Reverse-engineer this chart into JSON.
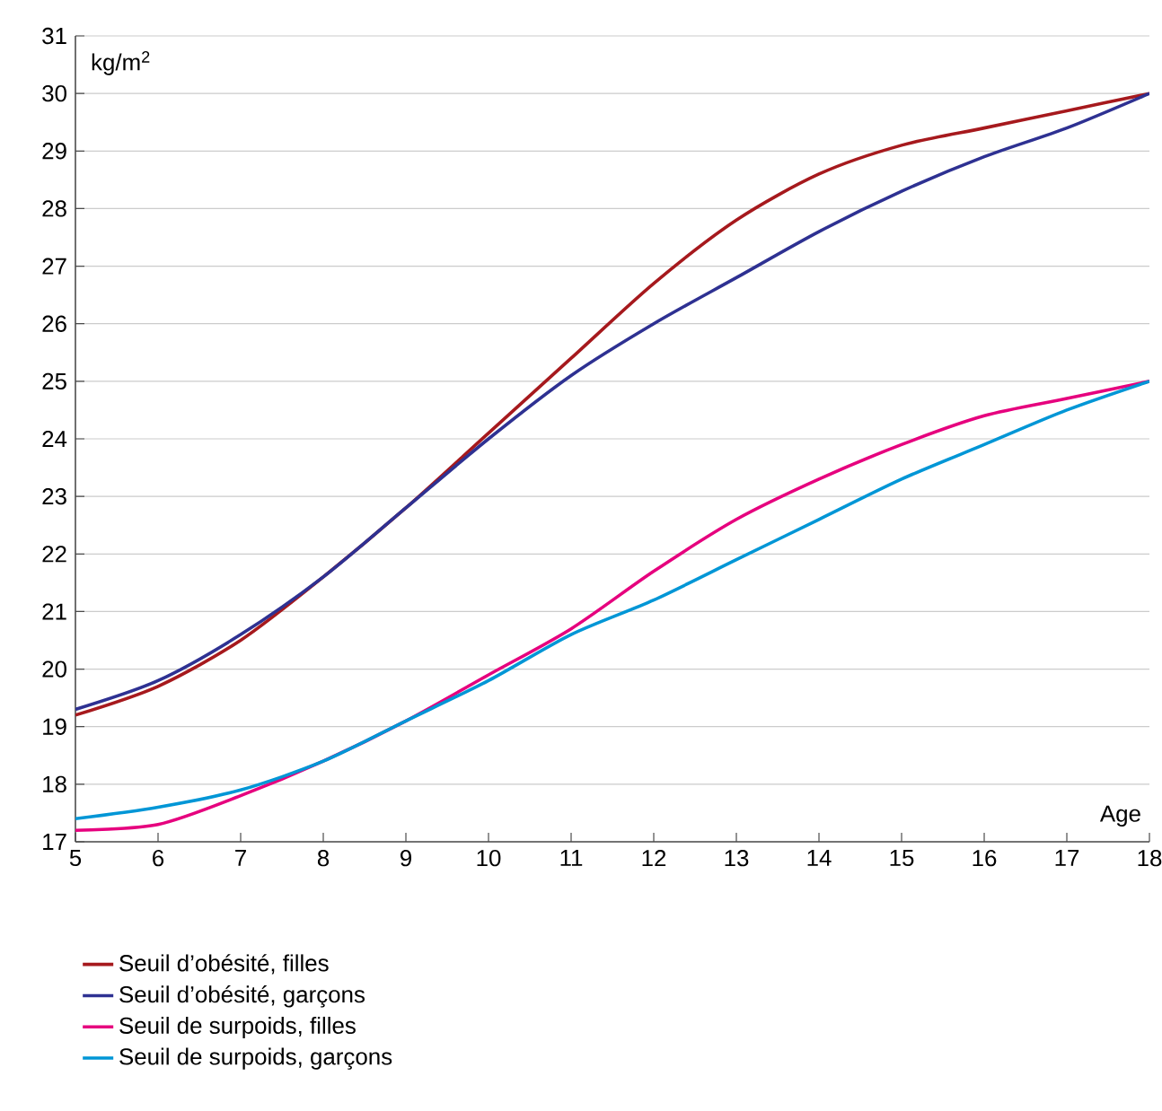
{
  "chart_data": {
    "type": "line",
    "xlabel": "Age",
    "ylabel": "kg/m$^{2}$",
    "x": [
      5,
      6,
      7,
      8,
      9,
      10,
      11,
      12,
      13,
      14,
      15,
      16,
      17,
      18
    ],
    "series": [
      {
        "name": "Seuil d’obésité, filles",
        "color": "#a6191d",
        "values": [
          19.2,
          19.7,
          20.5,
          21.6,
          22.8,
          24.1,
          25.4,
          26.7,
          27.8,
          28.6,
          29.1,
          29.4,
          29.7,
          30.0
        ]
      },
      {
        "name": "Seuil d’obésité, garçons",
        "color": "#2e3192",
        "values": [
          19.3,
          19.8,
          20.6,
          21.6,
          22.8,
          24.0,
          25.1,
          26.0,
          26.8,
          27.6,
          28.3,
          28.9,
          29.4,
          30.0
        ]
      },
      {
        "name": "Seuil de surpoids, filles",
        "color": "#e6007e",
        "values": [
          17.2,
          17.3,
          17.8,
          18.4,
          19.1,
          19.9,
          20.7,
          21.7,
          22.6,
          23.3,
          23.9,
          24.4,
          24.7,
          25.0
        ]
      },
      {
        "name": "Seuil de surpoids, garçons",
        "color": "#0096d6",
        "values": [
          17.4,
          17.6,
          17.9,
          18.4,
          19.1,
          19.8,
          20.6,
          21.2,
          21.9,
          22.6,
          23.3,
          23.9,
          24.5,
          25.0
        ]
      }
    ],
    "xlim": [
      5,
      18
    ],
    "ylim": [
      17,
      31
    ],
    "xticks": [
      5,
      6,
      7,
      8,
      9,
      10,
      11,
      12,
      13,
      14,
      15,
      16,
      17,
      18
    ],
    "yticks": [
      17,
      18,
      19,
      20,
      21,
      22,
      23,
      24,
      25,
      26,
      27,
      28,
      29,
      30,
      31
    ],
    "grid": "y",
    "legend": "bottom",
    "marker": "none",
    "line_style": "solid"
  }
}
